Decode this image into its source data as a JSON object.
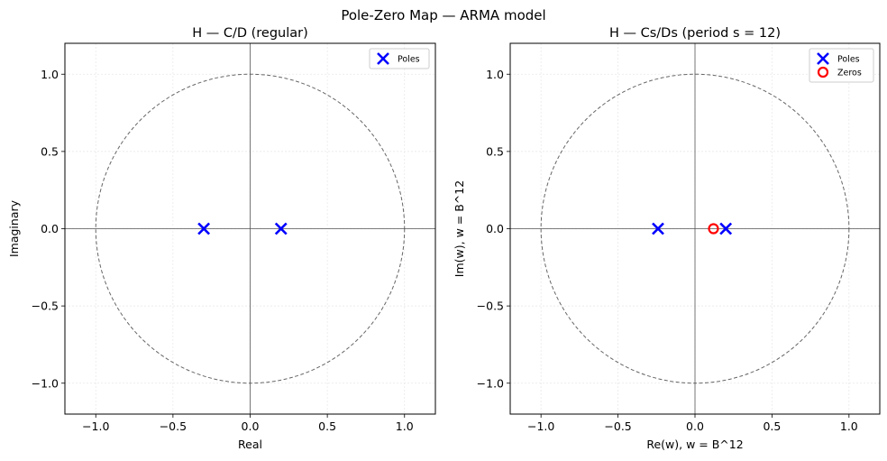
{
  "figure": {
    "suptitle": "Pole-Zero Map  —  ARMA model"
  },
  "colors": {
    "pole": "#0000ff",
    "zero": "#ff0000",
    "unit_circle": "#666666",
    "axis_lines": "#555555",
    "grid": "#e6e6e6"
  },
  "chart_data": [
    {
      "type": "scatter",
      "title": "H — C/D (regular)",
      "xlabel": "Real",
      "ylabel": "Imaginary",
      "xlim": [
        -1.2,
        1.2
      ],
      "ylim": [
        -1.2,
        1.2
      ],
      "xticks": [
        -1.0,
        -0.5,
        0.0,
        0.5,
        1.0
      ],
      "yticks": [
        -1.0,
        -0.5,
        0.0,
        0.5,
        1.0
      ],
      "xtick_labels": [
        "−1.0",
        "−0.5",
        "0.0",
        "0.5",
        "1.0"
      ],
      "ytick_labels": [
        "−1.0",
        "−0.5",
        "0.0",
        "0.5",
        "1.0"
      ],
      "grid": true,
      "unit_circle": true,
      "legend_position": "top-right",
      "series": [
        {
          "name": "Poles",
          "marker": "x",
          "points": [
            [
              -0.3,
              0.0
            ],
            [
              0.2,
              0.0
            ]
          ]
        }
      ]
    },
    {
      "type": "scatter",
      "title": "H — Cs/Ds  (period s = 12)",
      "xlabel": "Re(w),  w = B^12",
      "ylabel": "Im(w),  w = B^12",
      "xlim": [
        -1.2,
        1.2
      ],
      "ylim": [
        -1.2,
        1.2
      ],
      "xticks": [
        -1.0,
        -0.5,
        0.0,
        0.5,
        1.0
      ],
      "yticks": [
        -1.0,
        -0.5,
        0.0,
        0.5,
        1.0
      ],
      "xtick_labels": [
        "−1.0",
        "−0.5",
        "0.0",
        "0.5",
        "1.0"
      ],
      "ytick_labels": [
        "−1.0",
        "−0.5",
        "0.0",
        "0.5",
        "1.0"
      ],
      "grid": true,
      "unit_circle": true,
      "legend_position": "top-right",
      "series": [
        {
          "name": "Poles",
          "marker": "x",
          "points": [
            [
              -0.24,
              0.0
            ],
            [
              0.2,
              0.0
            ]
          ]
        },
        {
          "name": "Zeros",
          "marker": "o",
          "points": [
            [
              0.12,
              0.0
            ]
          ]
        }
      ]
    }
  ]
}
